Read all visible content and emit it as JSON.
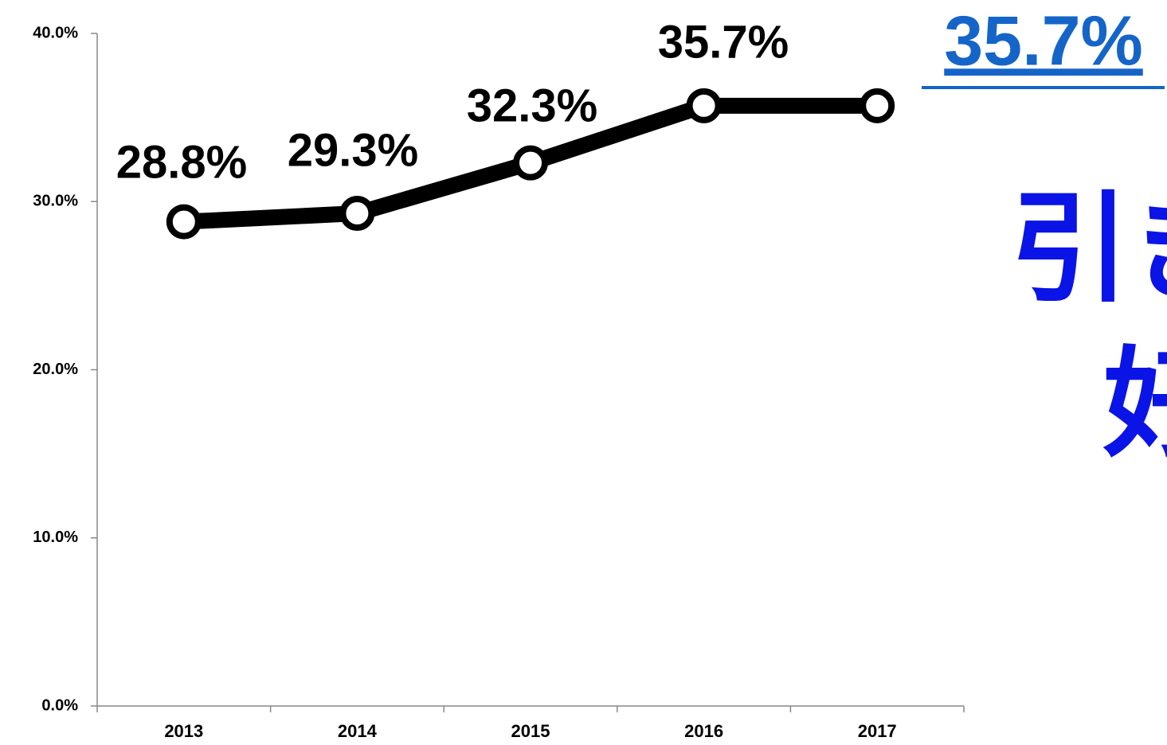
{
  "chart_data": {
    "type": "line",
    "categories": [
      "2013",
      "2014",
      "2015",
      "2016",
      "2017"
    ],
    "series": [
      {
        "name": null,
        "color": "#000000",
        "values": [
          28.8,
          29.3,
          32.3,
          35.7,
          35.7
        ],
        "value_labels": [
          "28.8%",
          "29.3%",
          "32.3%",
          "35.7%",
          "35.7%"
        ]
      }
    ],
    "ylim": [
      0,
      40
    ],
    "yticks": [
      {
        "value": 0,
        "label": "0.0%"
      },
      {
        "value": 10,
        "label": "10.0%"
      },
      {
        "value": 20,
        "label": "20.0%"
      },
      {
        "value": 30,
        "label": "30.0%"
      },
      {
        "value": 40,
        "label": "40.0%"
      }
    ],
    "annotations": [
      "引き",
      "好"
    ],
    "highlight_color": "#1565c8",
    "annotation_color": "#0a14e6"
  }
}
